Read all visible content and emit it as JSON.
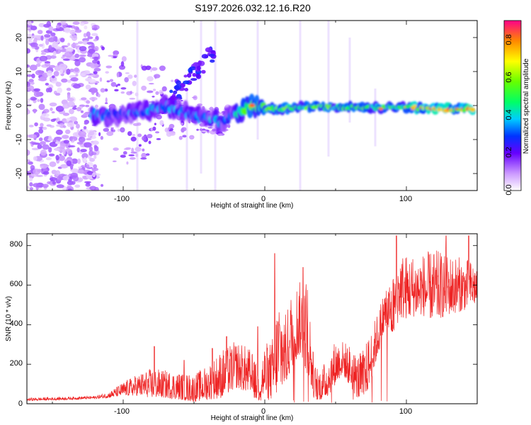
{
  "title": "S197.2026.032.12.16.R20",
  "chart_data": [
    {
      "type": "heatmap",
      "xlabel": "Height of straight line (km)",
      "ylabel": "Frequency (Hz)",
      "xlim": [
        -168,
        150
      ],
      "ylim": [
        -25,
        25
      ],
      "xticks": [
        "-100",
        "0",
        "100"
      ],
      "yticks": [
        "20",
        "10",
        "0",
        "-10",
        "-20"
      ],
      "grid": false,
      "colorbar": {
        "label": "Normalized spectral amplitude",
        "range": [
          0.0,
          0.9
        ],
        "ticks": [
          "0.0",
          "0.2",
          "0.4",
          "0.6",
          "0.8"
        ]
      },
      "ridge": {
        "x": [
          -120,
          -110,
          -100,
          -90,
          -80,
          -70,
          -60,
          -50,
          -40,
          -30,
          -20,
          -10,
          0,
          10,
          20,
          40,
          60,
          80,
          100,
          120,
          148
        ],
        "freq": [
          -2.5,
          -3,
          -2.5,
          -2,
          -1,
          0,
          -1.5,
          -3,
          -4,
          -5,
          -2,
          0,
          -1,
          -1,
          -0.5,
          -0.5,
          -0.5,
          -0.5,
          -0.5,
          -1,
          -1
        ]
      }
    },
    {
      "type": "line",
      "xlabel": "Height of straight line (km)",
      "ylabel": "SNR (10 * v/v)",
      "xlim": [
        -168,
        150
      ],
      "ylim": [
        0,
        860
      ],
      "xticks": [
        "-100",
        "0",
        "100"
      ],
      "yticks": [
        "800",
        "600",
        "400",
        "200",
        "0"
      ],
      "grid": false,
      "series": [
        {
          "name": "SNR",
          "color": "#ee2222",
          "envelope_x": [
            -168,
            -140,
            -120,
            -110,
            -100,
            -90,
            -80,
            -70,
            -60,
            -50,
            -40,
            -30,
            -20,
            -10,
            -5,
            0,
            5,
            10,
            15,
            20,
            25,
            30,
            35,
            40,
            45,
            50,
            55,
            60,
            65,
            70,
            75,
            80,
            85,
            90,
            95,
            100,
            110,
            120,
            130,
            140,
            148
          ],
          "envelope_lo": [
            15,
            20,
            25,
            30,
            40,
            40,
            30,
            30,
            20,
            10,
            20,
            30,
            80,
            50,
            10,
            30,
            20,
            60,
            100,
            200,
            250,
            150,
            20,
            20,
            40,
            100,
            150,
            90,
            30,
            10,
            120,
            250,
            370,
            330,
            430,
            430,
            450,
            420,
            450,
            470,
            500
          ],
          "envelope_hi": [
            30,
            35,
            40,
            60,
            110,
            150,
            180,
            170,
            160,
            150,
            200,
            280,
            320,
            280,
            180,
            310,
            320,
            580,
            450,
            620,
            620,
            650,
            200,
            180,
            250,
            330,
            320,
            300,
            250,
            280,
            370,
            470,
            600,
            650,
            780,
            760,
            760,
            780,
            760,
            740,
            720
          ],
          "spikes": [
            {
              "x": -78,
              "y": 290
            },
            {
              "x": -57,
              "y": 220
            },
            {
              "x": -37,
              "y": 280
            },
            {
              "x": -27,
              "y": 340
            },
            {
              "x": -5,
              "y": 390
            },
            {
              "x": 7,
              "y": 760
            },
            {
              "x": 27,
              "y": 690
            },
            {
              "x": 93,
              "y": 850
            },
            {
              "x": 128,
              "y": 850
            },
            {
              "x": 144,
              "y": 850
            }
          ]
        }
      ]
    }
  ]
}
